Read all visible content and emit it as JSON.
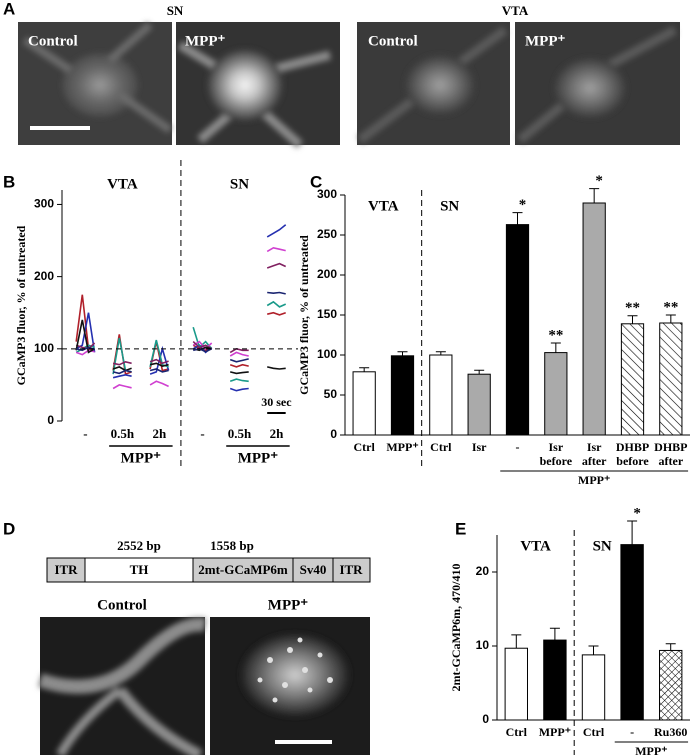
{
  "panel_a": {
    "letter": "A",
    "regions": [
      {
        "name": "SN",
        "images": [
          "Control",
          "MPP⁺"
        ]
      },
      {
        "name": "VTA",
        "images": [
          "Control",
          "MPP⁺"
        ]
      }
    ]
  },
  "panel_d": {
    "letter": "D",
    "construct": [
      "ITR",
      "TH",
      "2mt-GCaMP6m",
      "Sv40",
      "ITR"
    ],
    "lengths": [
      "2552 bp",
      "1558 bp"
    ],
    "images": [
      "Control",
      "MPP⁺"
    ]
  },
  "chart_data": [
    {
      "type": "line",
      "letter": "B",
      "y_label": "GCaMP3 fluor, % of untreated",
      "regions": [
        "VTA",
        "SN"
      ],
      "groups": [
        "-",
        "0.5h",
        "2h",
        "-",
        "0.5h",
        "2h"
      ],
      "treatment": [
        "MPP⁺",
        "MPP⁺"
      ],
      "scale_bar": "30 sec",
      "x": [
        0,
        1,
        2,
        3,
        4.5,
        6,
        7,
        8,
        9,
        10.5,
        12,
        13,
        14,
        15,
        17,
        19,
        20,
        21,
        22,
        23.5,
        25,
        26,
        27,
        28,
        29.5,
        31,
        32,
        33,
        34
      ],
      "xlim": [
        -1,
        36
      ],
      "ylim": [
        0,
        320
      ],
      "yticks": [
        0,
        100,
        200,
        300
      ],
      "hline": 100,
      "series": [
        {
          "color": "#b0202a",
          "values": [
            110,
            175,
            100,
            98,
            null,
            70,
            120,
            65,
            68,
            null,
            72,
            110,
            70,
            72,
            null,
            105,
            100,
            98,
            100,
            null,
            78,
            75,
            78,
            76,
            null,
            148,
            150,
            147,
            150
          ]
        },
        {
          "color": "#2530b0",
          "values": [
            100,
            105,
            150,
            95,
            null,
            60,
            62,
            64,
            62,
            null,
            65,
            68,
            100,
            70,
            null,
            100,
            105,
            95,
            102,
            null,
            45,
            42,
            44,
            45,
            null,
            255,
            260,
            265,
            272
          ]
        },
        {
          "color": "#1a9a8a",
          "values": [
            95,
            100,
            105,
            102,
            null,
            65,
            115,
            70,
            68,
            null,
            75,
            112,
            78,
            75,
            null,
            130,
            102,
            110,
            100,
            null,
            55,
            58,
            56,
            55,
            null,
            160,
            165,
            158,
            162
          ]
        },
        {
          "color": "#d040d0",
          "values": [
            95,
            92,
            98,
            96,
            null,
            45,
            50,
            48,
            46,
            null,
            50,
            55,
            52,
            48,
            null,
            105,
            110,
            100,
            108,
            null,
            90,
            95,
            92,
            90,
            null,
            235,
            240,
            238,
            236
          ]
        },
        {
          "color": "#802060",
          "values": [
            105,
            102,
            100,
            108,
            null,
            80,
            78,
            82,
            80,
            null,
            82,
            85,
            80,
            83,
            null,
            110,
            102,
            105,
            100,
            null,
            95,
            100,
            98,
            98,
            null,
            212,
            215,
            218,
            214
          ]
        },
        {
          "color": "#111111",
          "values": [
            98,
            140,
            95,
            100,
            null,
            72,
            75,
            70,
            73,
            null,
            78,
            80,
            76,
            78,
            null,
            100,
            98,
            102,
            100,
            null,
            68,
            66,
            67,
            68,
            null,
            75,
            73,
            72,
            73
          ]
        },
        {
          "color": "#1a2470",
          "values": [
            100,
            98,
            102,
            99,
            null,
            68,
            66,
            70,
            68,
            null,
            70,
            72,
            68,
            70,
            null,
            98,
            100,
            96,
            100,
            null,
            85,
            82,
            84,
            86,
            null,
            178,
            177,
            178,
            176
          ]
        }
      ]
    },
    {
      "type": "bar",
      "letter": "C",
      "y_label": "GCaMP3 fluor, % of untreated",
      "regions": [
        "VTA",
        "SN"
      ],
      "treatment": "MPP⁺",
      "categories": [
        [
          "Ctrl"
        ],
        [
          "MPP⁺"
        ],
        [
          "Ctrl"
        ],
        [
          "Isr"
        ],
        [
          "-"
        ],
        [
          "Isr",
          "before"
        ],
        [
          "Isr",
          "after"
        ],
        [
          "DHBP",
          "before"
        ],
        [
          "DHBP",
          "after"
        ]
      ],
      "values": [
        79,
        99,
        100,
        76,
        263,
        103,
        290,
        139,
        140
      ],
      "errors": [
        5,
        5,
        4,
        5,
        15,
        12,
        18,
        10,
        10
      ],
      "annotations": [
        null,
        null,
        null,
        null,
        "*",
        "**",
        "*",
        "**",
        "**"
      ],
      "fills": [
        "white",
        "black",
        "white",
        "gray",
        "black",
        "gray",
        "gray",
        "hatch",
        "hatch"
      ],
      "ylim": [
        0,
        300
      ],
      "yticks": [
        0,
        50,
        100,
        150,
        200,
        250,
        300
      ]
    },
    {
      "type": "bar",
      "letter": "E",
      "y_label": "2mt-GCaMP6m, 470/410",
      "regions": [
        "VTA",
        "SN"
      ],
      "treatment": "MPP⁺",
      "categories": [
        [
          "Ctrl"
        ],
        [
          "MPP⁺"
        ],
        [
          "Ctrl"
        ],
        [
          "-"
        ],
        [
          "Ru360"
        ]
      ],
      "values": [
        9.7,
        10.8,
        8.8,
        23.7,
        9.4
      ],
      "errors": [
        1.8,
        1.6,
        1.2,
        3.2,
        0.9
      ],
      "annotations": [
        null,
        null,
        null,
        "*",
        null
      ],
      "fills": [
        "white",
        "black",
        "white",
        "black",
        "crosshatch"
      ],
      "ylim": [
        0,
        25
      ],
      "yticks": [
        0,
        10,
        20
      ]
    }
  ]
}
